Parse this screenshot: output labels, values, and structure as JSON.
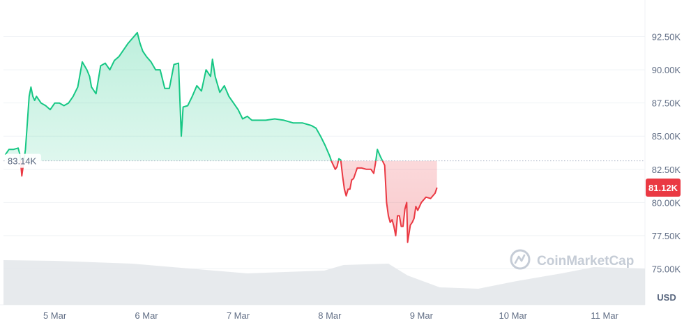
{
  "chart_data": {
    "type": "area",
    "title": "",
    "xlabel": "",
    "ylabel": "",
    "currency_label": "USD",
    "watermark": "CoinMarketCap",
    "baseline_value": 83140,
    "baseline_label": "83.14K",
    "current_value": 81120,
    "current_label": "81.12K",
    "ylim": [
      72500,
      95000
    ],
    "y_ticks": [
      {
        "value": 92500,
        "label": "92.50K"
      },
      {
        "value": 90000,
        "label": "90.00K"
      },
      {
        "value": 87500,
        "label": "87.50K"
      },
      {
        "value": 85000,
        "label": "85.00K"
      },
      {
        "value": 82500,
        "label": "82.50K"
      },
      {
        "value": 80000,
        "label": "80.00K"
      },
      {
        "value": 77500,
        "label": "77.50K"
      },
      {
        "value": 75000,
        "label": "75.00K"
      }
    ],
    "x_ticks": [
      {
        "t": 5,
        "label": "5 Mar"
      },
      {
        "t": 6,
        "label": "6 Mar"
      },
      {
        "t": 7,
        "label": "7 Mar"
      },
      {
        "t": 8,
        "label": "8 Mar"
      },
      {
        "t": 9,
        "label": "9 Mar"
      },
      {
        "t": 10,
        "label": "10 Mar"
      },
      {
        "t": 11,
        "label": "11 Mar"
      }
    ],
    "xlim": [
      4.44,
      11.44
    ],
    "grid": true,
    "colors": {
      "up": "#16c784",
      "down": "#ea3943",
      "grid": "#eff2f5",
      "axis_text": "#616e85",
      "baseline": "#a6b0c3",
      "volume": "#e3e6ea",
      "watermark": "#c5ccd6"
    },
    "series": [
      {
        "values": [
          [
            4.46,
            83600
          ],
          [
            4.5,
            84000
          ],
          [
            4.55,
            84000
          ],
          [
            4.6,
            84100
          ],
          [
            4.62,
            83600
          ],
          [
            4.64,
            82000
          ],
          [
            4.66,
            83000
          ],
          [
            4.68,
            84000
          ],
          [
            4.7,
            86000
          ],
          [
            4.72,
            88000
          ],
          [
            4.74,
            88700
          ],
          [
            4.76,
            88000
          ],
          [
            4.78,
            87700
          ],
          [
            4.8,
            88000
          ],
          [
            4.85,
            87500
          ],
          [
            4.9,
            87300
          ],
          [
            4.95,
            87000
          ],
          [
            5.0,
            87500
          ],
          [
            5.05,
            87500
          ],
          [
            5.1,
            87300
          ],
          [
            5.15,
            87500
          ],
          [
            5.2,
            88000
          ],
          [
            5.25,
            88700
          ],
          [
            5.3,
            90600
          ],
          [
            5.35,
            90000
          ],
          [
            5.38,
            89500
          ],
          [
            5.4,
            88700
          ],
          [
            5.45,
            88200
          ],
          [
            5.5,
            90300
          ],
          [
            5.55,
            90500
          ],
          [
            5.6,
            90000
          ],
          [
            5.65,
            90700
          ],
          [
            5.7,
            91000
          ],
          [
            5.75,
            91500
          ],
          [
            5.8,
            92000
          ],
          [
            5.85,
            92400
          ],
          [
            5.9,
            92800
          ],
          [
            5.93,
            92000
          ],
          [
            5.96,
            91400
          ],
          [
            6.0,
            91000
          ],
          [
            6.05,
            90600
          ],
          [
            6.1,
            90000
          ],
          [
            6.15,
            90000
          ],
          [
            6.2,
            88600
          ],
          [
            6.25,
            88600
          ],
          [
            6.3,
            90400
          ],
          [
            6.35,
            90500
          ],
          [
            6.38,
            85000
          ],
          [
            6.4,
            87200
          ],
          [
            6.45,
            87300
          ],
          [
            6.5,
            88000
          ],
          [
            6.55,
            88800
          ],
          [
            6.6,
            88400
          ],
          [
            6.65,
            90000
          ],
          [
            6.7,
            89500
          ],
          [
            6.72,
            90800
          ],
          [
            6.75,
            89500
          ],
          [
            6.8,
            88300
          ],
          [
            6.85,
            88800
          ],
          [
            6.9,
            88000
          ],
          [
            6.95,
            87500
          ],
          [
            7.0,
            87000
          ],
          [
            7.05,
            86300
          ],
          [
            7.1,
            86500
          ],
          [
            7.15,
            86200
          ],
          [
            7.2,
            86200
          ],
          [
            7.3,
            86200
          ],
          [
            7.4,
            86300
          ],
          [
            7.5,
            86200
          ],
          [
            7.6,
            86000
          ],
          [
            7.7,
            86000
          ],
          [
            7.8,
            85800
          ],
          [
            7.85,
            85600
          ],
          [
            7.9,
            85000
          ],
          [
            7.95,
            84300
          ],
          [
            8.0,
            83500
          ],
          [
            8.02,
            83100
          ],
          [
            8.04,
            82800
          ],
          [
            8.06,
            82500
          ],
          [
            8.08,
            82700
          ],
          [
            8.1,
            83300
          ],
          [
            8.12,
            83200
          ],
          [
            8.14,
            82000
          ],
          [
            8.16,
            81000
          ],
          [
            8.18,
            80500
          ],
          [
            8.2,
            81000
          ],
          [
            8.22,
            81000
          ],
          [
            8.24,
            81700
          ],
          [
            8.26,
            81800
          ],
          [
            8.3,
            82600
          ],
          [
            8.35,
            82600
          ],
          [
            8.4,
            82500
          ],
          [
            8.45,
            82500
          ],
          [
            8.48,
            82200
          ],
          [
            8.5,
            83000
          ],
          [
            8.52,
            84000
          ],
          [
            8.55,
            83500
          ],
          [
            8.6,
            82800
          ],
          [
            8.62,
            80000
          ],
          [
            8.64,
            79000
          ],
          [
            8.66,
            78500
          ],
          [
            8.68,
            78700
          ],
          [
            8.7,
            78200
          ],
          [
            8.72,
            77500
          ],
          [
            8.74,
            79000
          ],
          [
            8.76,
            79000
          ],
          [
            8.78,
            78200
          ],
          [
            8.8,
            78200
          ],
          [
            8.82,
            79500
          ],
          [
            8.84,
            80000
          ],
          [
            8.85,
            77000
          ],
          [
            8.88,
            78300
          ],
          [
            8.9,
            78500
          ],
          [
            8.92,
            78800
          ],
          [
            8.94,
            79700
          ],
          [
            8.96,
            79400
          ],
          [
            9.0,
            80000
          ],
          [
            9.05,
            80400
          ],
          [
            9.1,
            80300
          ],
          [
            9.15,
            80700
          ],
          [
            9.17,
            81120
          ]
        ]
      }
    ]
  }
}
